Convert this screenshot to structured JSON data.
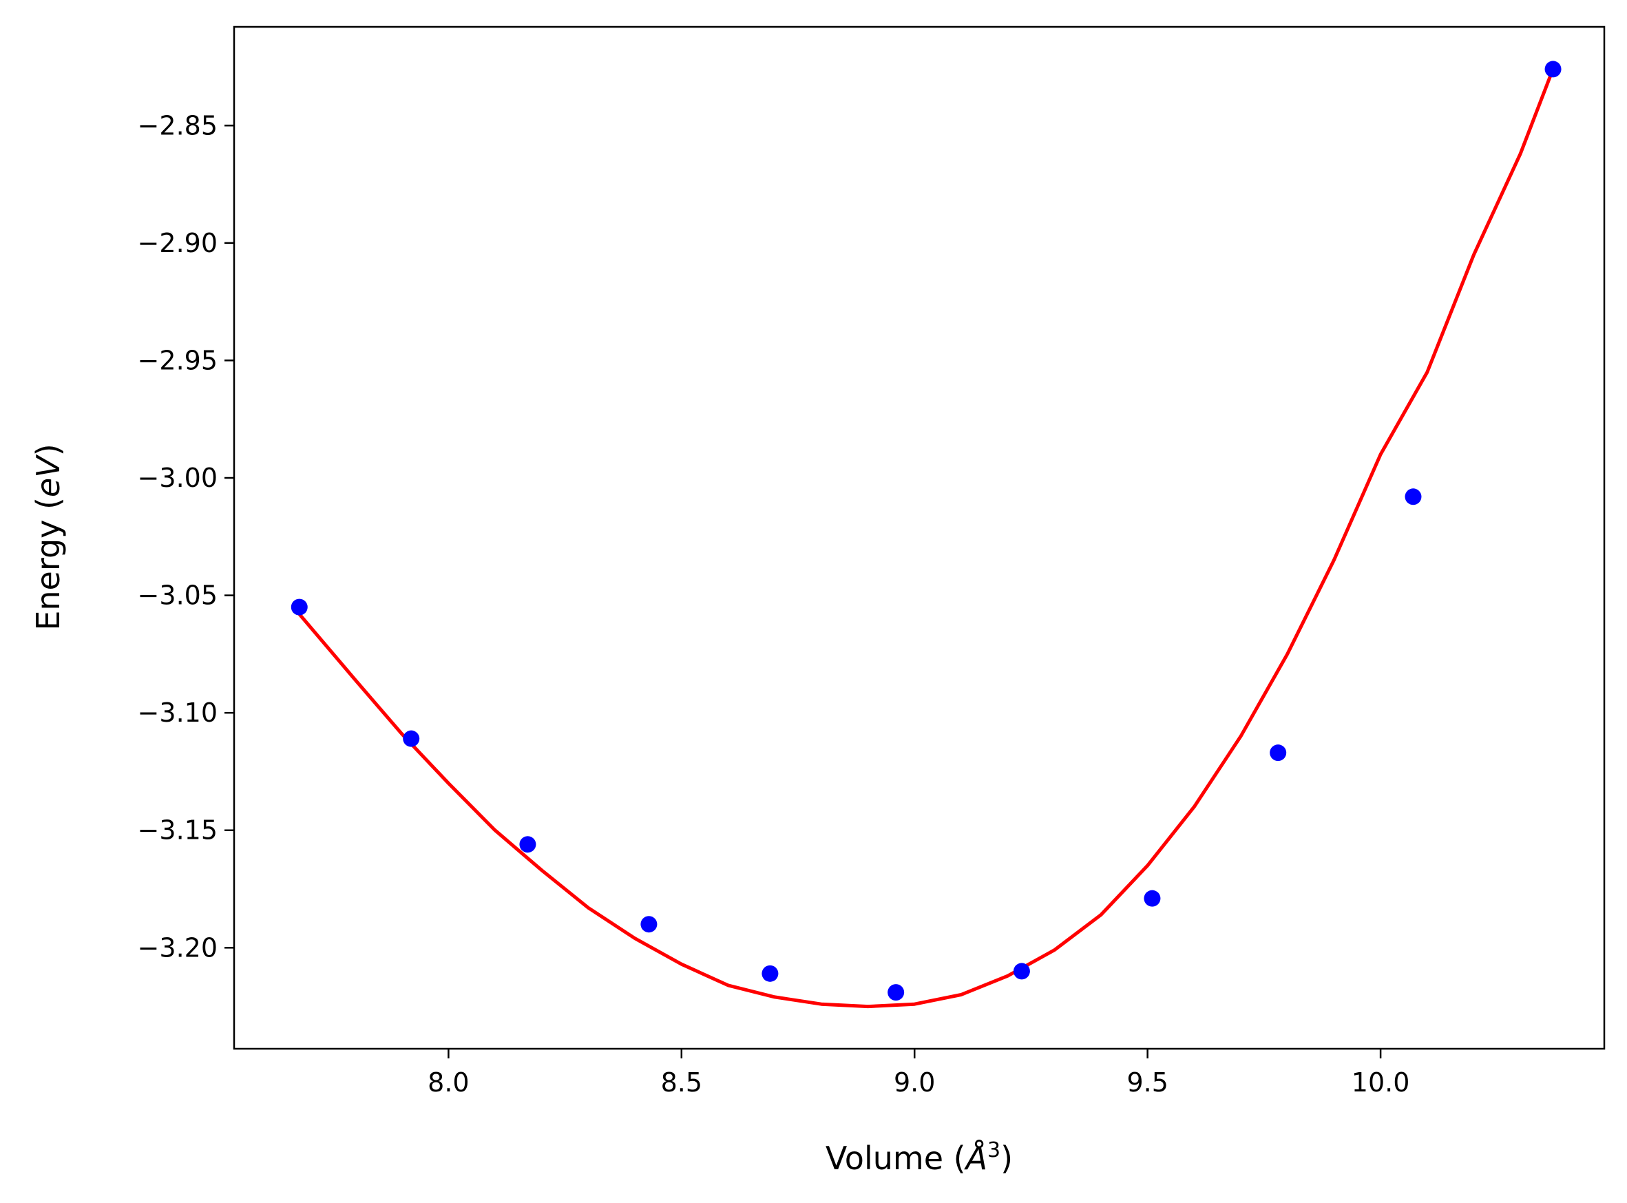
{
  "chart_data": {
    "type": "scatter",
    "title": "",
    "xlabel": "Volume",
    "xlabel_unit": "Å",
    "xlabel_unit_exponent": "3",
    "ylabel": "Energy",
    "ylabel_unit": "eV",
    "xlim": [
      7.54,
      10.48
    ],
    "ylim": [
      -3.243,
      -2.808
    ],
    "xticks": [
      8.0,
      8.5,
      9.0,
      9.5,
      10.0
    ],
    "xtick_labels": [
      "8.0",
      "8.5",
      "9.0",
      "9.5",
      "10.0"
    ],
    "yticks": [
      -2.85,
      -2.9,
      -2.95,
      -3.0,
      -3.05,
      -3.1,
      -3.15,
      -3.2
    ],
    "ytick_labels": [
      "−2.85",
      "−2.90",
      "−2.95",
      "−3.00",
      "−3.05",
      "−3.10",
      "−3.15",
      "−3.20"
    ],
    "grid": false,
    "legend": "none",
    "series": [
      {
        "kind": "scatter",
        "color": "#0000ff",
        "x": [
          7.68,
          7.92,
          8.17,
          8.43,
          8.69,
          8.96,
          9.23,
          9.51,
          9.78,
          10.07,
          10.37
        ],
        "y": [
          -3.055,
          -3.111,
          -3.156,
          -3.19,
          -3.211,
          -3.219,
          -3.21,
          -3.179,
          -3.117,
          -3.008,
          -2.826
        ]
      },
      {
        "kind": "line",
        "color": "#ff0000",
        "x": [
          7.68,
          7.8,
          7.9,
          8.0,
          8.1,
          8.2,
          8.3,
          8.4,
          8.5,
          8.6,
          8.7,
          8.8,
          8.9,
          9.0,
          9.1,
          9.2,
          9.3,
          9.4,
          9.5,
          9.6,
          9.7,
          9.8,
          9.9,
          10.0,
          10.1,
          10.2,
          10.3,
          10.37
        ],
        "y": [
          -3.058,
          -3.086,
          -3.109,
          -3.13,
          -3.15,
          -3.167,
          -3.183,
          -3.196,
          -3.207,
          -3.216,
          -3.221,
          -3.224,
          -3.225,
          -3.224,
          -3.22,
          -3.212,
          -3.201,
          -3.186,
          -3.165,
          -3.14,
          -3.11,
          -3.075,
          -3.035,
          -2.99,
          -2.955,
          -2.905,
          -2.862,
          -2.826
        ]
      }
    ]
  }
}
